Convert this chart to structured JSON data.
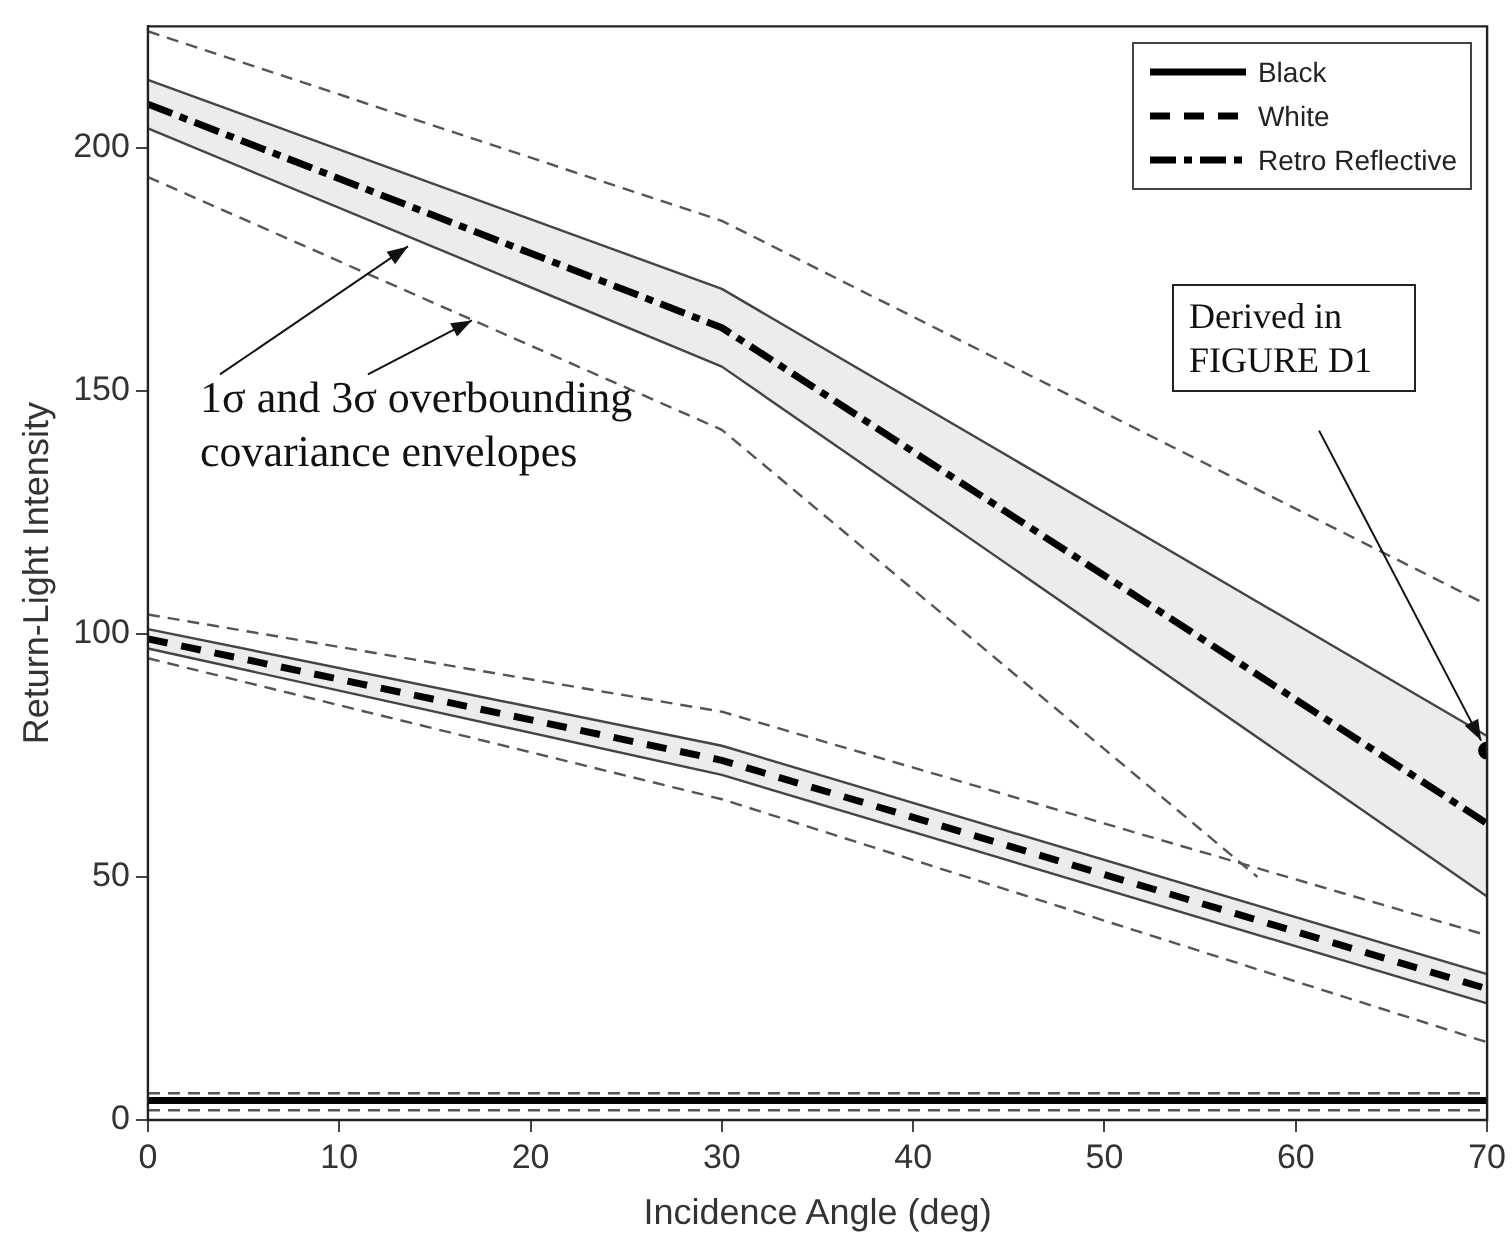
{
  "chart_data": {
    "type": "line",
    "xlabel": "Incidence Angle (deg)",
    "ylabel": "Return-Light Intensity",
    "x": [
      0,
      30,
      70
    ],
    "xlim": [
      0,
      70
    ],
    "xticks": [
      0,
      10,
      20,
      30,
      40,
      50,
      60,
      70
    ],
    "ylim": [
      0,
      225
    ],
    "yticks": [
      0,
      50,
      100,
      150,
      200
    ],
    "legend": "top right",
    "series": [
      {
        "name": "Black",
        "color": "#000000",
        "line_style": "solid",
        "values": [
          4,
          4,
          4
        ]
      },
      {
        "name": "White",
        "color": "#000000",
        "line_style": "dashed",
        "values": [
          99,
          74,
          27
        ],
        "lower": [
          97,
          71,
          24
        ],
        "upper": [
          101,
          77,
          30
        ]
      },
      {
        "name": "Retro Reflective",
        "color": "#000000",
        "line_style": "dashdot",
        "values": [
          209,
          163,
          61
        ],
        "lower": [
          204,
          155,
          46
        ],
        "upper": [
          214,
          171,
          79
        ]
      },
      {
        "color": "#444444",
        "line_style": "solid",
        "values": [
          97,
          71,
          24
        ]
      },
      {
        "color": "#444444",
        "line_style": "solid",
        "values": [
          101,
          77,
          30
        ]
      },
      {
        "color": "#444444",
        "line_style": "solid",
        "values": [
          204,
          155,
          46
        ]
      },
      {
        "color": "#444444",
        "line_style": "solid",
        "values": [
          214,
          171,
          79
        ]
      },
      {
        "color": "#555555",
        "line_style": "dashed",
        "values": [
          5.5,
          5.5,
          5.5
        ]
      },
      {
        "color": "#555555",
        "line_style": "dashed",
        "values": [
          2,
          2,
          2
        ]
      },
      {
        "color": "#555555",
        "line_style": "dashed",
        "values": [
          104,
          84,
          38
        ]
      },
      {
        "color": "#555555",
        "line_style": "dashed",
        "values": [
          95,
          66,
          16
        ]
      },
      {
        "color": "#555555",
        "line_style": "dashed",
        "values": [
          224,
          185,
          106
        ]
      },
      {
        "color": "#555555",
        "line_style": "dashed",
        "x": [
          0,
          30,
          58
        ],
        "values": [
          194,
          142,
          50
        ]
      },
      {
        "type": "scatter",
        "color": "#000000",
        "marker": "circle",
        "x": [
          70
        ],
        "values": [
          76
        ]
      }
    ],
    "annotations": [
      "1σ and 3σ overbounding covariance envelopes",
      "Derived in FIGURE D1"
    ]
  }
}
